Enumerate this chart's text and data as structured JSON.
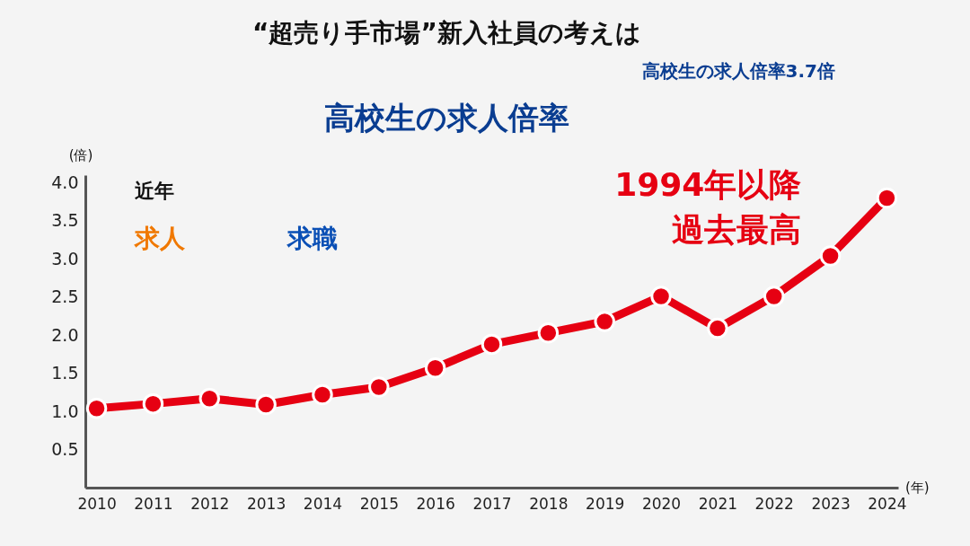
{
  "chart_data": {
    "type": "line",
    "title": "高校生の求人倍率",
    "subtitle": "高校生の求人倍率3.7倍",
    "xlabel": "(年)",
    "ylabel": "(倍)",
    "categories": [
      "2010",
      "2011",
      "2012",
      "2013",
      "2014",
      "2015",
      "2016",
      "2017",
      "2018",
      "2019",
      "2020",
      "2021",
      "2022",
      "2023",
      "2024"
    ],
    "series": [
      {
        "color": "#e60012",
        "values": [
          1.04,
          1.1,
          1.17,
          1.09,
          1.22,
          1.32,
          1.57,
          1.88,
          2.03,
          2.18,
          2.51,
          2.09,
          2.51,
          3.04,
          3.8
        ]
      }
    ],
    "ylim": [
      0,
      4.1
    ],
    "yticks": [
      0.5,
      {
        "value": 1,
        "label": "1.0"
      },
      1.5,
      {
        "value": 2,
        "label": "2.0"
      },
      2.5,
      {
        "value": 3,
        "label": "3.0"
      },
      3.5,
      {
        "value": 4,
        "label": "4.0"
      }
    ],
    "marker": "circle",
    "grid": false,
    "annotations": [
      "“超売り手市場”新入社員の考えは",
      "近年",
      "求人",
      "求職",
      {
        "text": "1994年以降",
        "x": "2024",
        "y": 3.8
      },
      {
        "text": "過去最高",
        "x": "2024",
        "y": 3.8
      }
    ]
  }
}
